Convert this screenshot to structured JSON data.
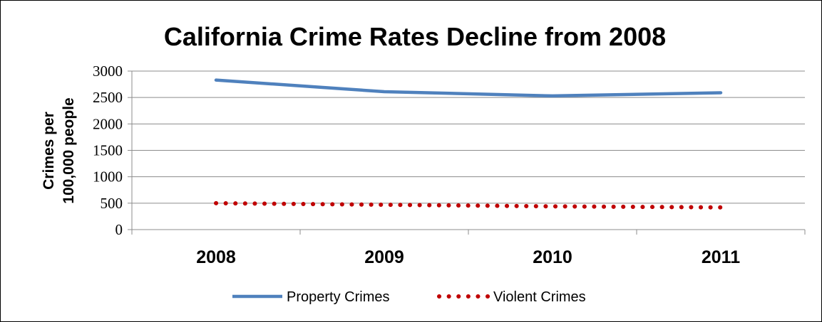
{
  "chart_data": {
    "type": "line",
    "title": "California Crime Rates Decline from 2008",
    "ylabel_lines": [
      "Crimes per",
      "100,000 people"
    ],
    "xlabel": "",
    "categories": [
      "2008",
      "2009",
      "2010",
      "2011"
    ],
    "yticks": [
      "0",
      "500",
      "1000",
      "1500",
      "2000",
      "2500",
      "3000"
    ],
    "ylim": [
      0,
      3000
    ],
    "grid": true,
    "legend_position": "bottom",
    "series": [
      {
        "name": "Property Crimes",
        "values": [
          2830,
          2610,
          2530,
          2590
        ],
        "color": "#4F81BD",
        "style": "solid"
      },
      {
        "name": "Violent Crimes",
        "values": [
          500,
          470,
          440,
          420
        ],
        "color": "#C00000",
        "style": "dotted"
      }
    ]
  }
}
